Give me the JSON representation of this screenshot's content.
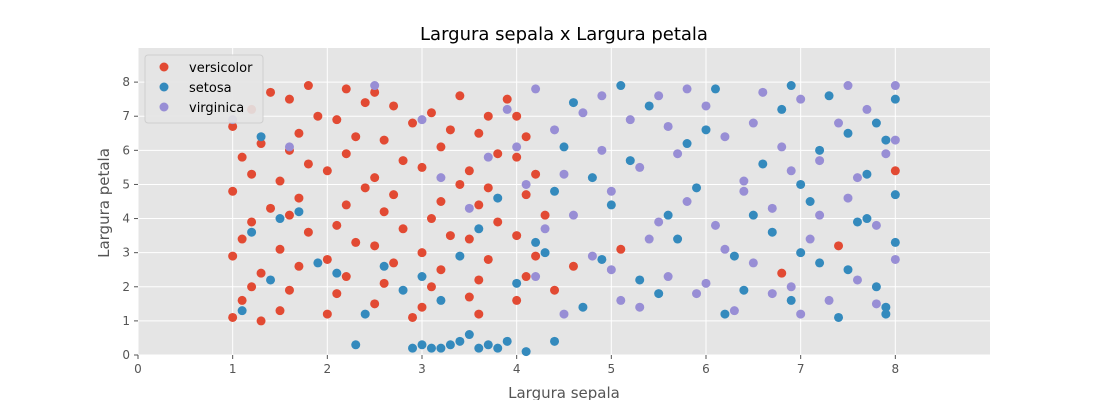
{
  "chart_data": {
    "type": "scatter",
    "title": "Largura sepala x Largura petala",
    "xlabel": "Largura sepala",
    "ylabel": "Largura petala",
    "xlim": [
      0,
      9
    ],
    "ylim": [
      0,
      9
    ],
    "xticks": [
      0,
      1,
      2,
      3,
      4,
      5,
      6,
      7,
      8
    ],
    "yticks": [
      0,
      1,
      2,
      3,
      4,
      5,
      6,
      7,
      8
    ],
    "grid": true,
    "legend_position": "top-left",
    "series": [
      {
        "name": "versicolor",
        "color": "#E24A33",
        "points": [
          [
            1.0,
            1.1
          ],
          [
            1.1,
            1.6
          ],
          [
            1.2,
            2.0
          ],
          [
            1.3,
            2.4
          ],
          [
            1.0,
            2.9
          ],
          [
            1.1,
            3.4
          ],
          [
            1.2,
            3.9
          ],
          [
            1.4,
            4.3
          ],
          [
            1.0,
            4.8
          ],
          [
            1.2,
            5.3
          ],
          [
            1.1,
            5.8
          ],
          [
            1.3,
            6.2
          ],
          [
            1.0,
            6.7
          ],
          [
            1.2,
            7.2
          ],
          [
            1.4,
            7.7
          ],
          [
            1.5,
            1.3
          ],
          [
            1.6,
            1.9
          ],
          [
            1.7,
            2.6
          ],
          [
            1.5,
            3.1
          ],
          [
            1.8,
            3.6
          ],
          [
            1.6,
            4.1
          ],
          [
            1.7,
            4.6
          ],
          [
            1.5,
            5.1
          ],
          [
            1.8,
            5.6
          ],
          [
            1.6,
            6.0
          ],
          [
            1.7,
            6.5
          ],
          [
            1.9,
            7.0
          ],
          [
            1.6,
            7.5
          ],
          [
            1.8,
            7.9
          ],
          [
            2.0,
            1.2
          ],
          [
            2.1,
            1.8
          ],
          [
            2.2,
            2.3
          ],
          [
            2.0,
            2.8
          ],
          [
            2.3,
            3.3
          ],
          [
            2.1,
            3.8
          ],
          [
            2.2,
            4.4
          ],
          [
            2.4,
            4.9
          ],
          [
            2.0,
            5.4
          ],
          [
            2.2,
            5.9
          ],
          [
            2.3,
            6.4
          ],
          [
            2.1,
            6.9
          ],
          [
            2.4,
            7.4
          ],
          [
            2.2,
            7.8
          ],
          [
            2.5,
            1.5
          ],
          [
            2.6,
            2.1
          ],
          [
            2.7,
            2.7
          ],
          [
            2.5,
            3.2
          ],
          [
            2.8,
            3.7
          ],
          [
            2.6,
            4.2
          ],
          [
            2.7,
            4.7
          ],
          [
            2.5,
            5.2
          ],
          [
            2.8,
            5.7
          ],
          [
            2.6,
            6.3
          ],
          [
            2.9,
            6.8
          ],
          [
            2.7,
            7.3
          ],
          [
            2.5,
            7.7
          ],
          [
            3.0,
            1.4
          ],
          [
            3.1,
            2.0
          ],
          [
            3.2,
            2.5
          ],
          [
            3.0,
            3.0
          ],
          [
            3.3,
            3.5
          ],
          [
            3.1,
            4.0
          ],
          [
            3.2,
            4.5
          ],
          [
            3.4,
            5.0
          ],
          [
            3.0,
            5.5
          ],
          [
            3.2,
            6.1
          ],
          [
            3.3,
            6.6
          ],
          [
            3.1,
            7.1
          ],
          [
            3.4,
            7.6
          ],
          [
            3.5,
            1.7
          ],
          [
            3.6,
            2.2
          ],
          [
            3.7,
            2.8
          ],
          [
            3.5,
            3.4
          ],
          [
            3.8,
            3.9
          ],
          [
            3.6,
            4.4
          ],
          [
            3.7,
            4.9
          ],
          [
            3.5,
            5.4
          ],
          [
            3.8,
            5.9
          ],
          [
            3.6,
            6.5
          ],
          [
            3.7,
            7.0
          ],
          [
            3.9,
            7.5
          ],
          [
            4.0,
            1.6
          ],
          [
            4.1,
            2.3
          ],
          [
            4.2,
            2.9
          ],
          [
            4.0,
            3.5
          ],
          [
            4.3,
            4.1
          ],
          [
            4.1,
            4.7
          ],
          [
            4.2,
            5.3
          ],
          [
            4.0,
            5.8
          ],
          [
            4.1,
            6.4
          ],
          [
            4.0,
            7.0
          ],
          [
            1.3,
            1.0
          ],
          [
            2.9,
            1.1
          ],
          [
            3.6,
            1.2
          ],
          [
            4.4,
            1.9
          ],
          [
            4.6,
            2.6
          ],
          [
            5.1,
            3.1
          ],
          [
            6.8,
            2.4
          ],
          [
            7.4,
            3.2
          ],
          [
            8.0,
            5.4
          ]
        ]
      },
      {
        "name": "setosa",
        "color": "#348ABD",
        "points": [
          [
            1.1,
            1.3
          ],
          [
            1.4,
            2.2
          ],
          [
            1.2,
            3.6
          ],
          [
            1.5,
            4.0
          ],
          [
            1.3,
            6.4
          ],
          [
            1.7,
            4.2
          ],
          [
            1.9,
            2.7
          ],
          [
            2.1,
            2.4
          ],
          [
            2.4,
            1.2
          ],
          [
            2.6,
            2.6
          ],
          [
            2.3,
            0.3
          ],
          [
            2.9,
            0.2
          ],
          [
            3.0,
            0.3
          ],
          [
            3.1,
            0.2
          ],
          [
            3.2,
            0.2
          ],
          [
            3.3,
            0.3
          ],
          [
            3.4,
            0.4
          ],
          [
            3.5,
            0.6
          ],
          [
            3.6,
            0.2
          ],
          [
            3.7,
            0.3
          ],
          [
            3.8,
            0.2
          ],
          [
            3.9,
            0.4
          ],
          [
            4.1,
            0.1
          ],
          [
            4.4,
            0.4
          ],
          [
            2.8,
            1.9
          ],
          [
            3.0,
            2.3
          ],
          [
            3.2,
            1.6
          ],
          [
            3.4,
            2.9
          ],
          [
            3.6,
            3.7
          ],
          [
            3.8,
            4.6
          ],
          [
            4.0,
            2.1
          ],
          [
            4.2,
            3.3
          ],
          [
            4.4,
            4.8
          ],
          [
            4.5,
            6.1
          ],
          [
            4.7,
            1.4
          ],
          [
            4.9,
            2.8
          ],
          [
            5.0,
            4.4
          ],
          [
            5.2,
            5.7
          ],
          [
            5.4,
            7.3
          ],
          [
            5.5,
            1.8
          ],
          [
            5.7,
            3.4
          ],
          [
            5.9,
            4.9
          ],
          [
            6.0,
            6.6
          ],
          [
            6.2,
            1.2
          ],
          [
            6.3,
            2.9
          ],
          [
            6.5,
            4.1
          ],
          [
            6.6,
            5.6
          ],
          [
            6.8,
            7.2
          ],
          [
            6.9,
            1.6
          ],
          [
            7.0,
            3.0
          ],
          [
            7.1,
            4.5
          ],
          [
            7.2,
            6.0
          ],
          [
            7.3,
            7.6
          ],
          [
            7.4,
            1.1
          ],
          [
            7.5,
            2.5
          ],
          [
            7.6,
            3.9
          ],
          [
            7.7,
            5.3
          ],
          [
            7.8,
            6.8
          ],
          [
            7.9,
            1.4
          ],
          [
            8.0,
            3.3
          ],
          [
            8.0,
            4.7
          ],
          [
            7.9,
            6.3
          ],
          [
            8.0,
            7.5
          ],
          [
            5.1,
            7.9
          ],
          [
            6.1,
            7.8
          ],
          [
            4.8,
            5.2
          ],
          [
            5.3,
            2.2
          ],
          [
            5.8,
            6.2
          ],
          [
            6.4,
            1.9
          ],
          [
            6.7,
            3.6
          ],
          [
            7.0,
            5.0
          ],
          [
            7.5,
            6.5
          ],
          [
            7.8,
            2.0
          ],
          [
            4.3,
            3.0
          ],
          [
            4.6,
            7.4
          ],
          [
            5.6,
            4.1
          ],
          [
            6.9,
            7.9
          ],
          [
            7.2,
            2.7
          ],
          [
            7.7,
            4.0
          ],
          [
            7.9,
            1.2
          ]
        ]
      },
      {
        "name": "virginica",
        "color": "#988ED5",
        "points": [
          [
            1.0,
            6.9
          ],
          [
            1.6,
            6.1
          ],
          [
            2.5,
            7.9
          ],
          [
            3.0,
            6.9
          ],
          [
            3.2,
            5.2
          ],
          [
            3.5,
            4.3
          ],
          [
            3.7,
            5.8
          ],
          [
            3.9,
            7.2
          ],
          [
            4.0,
            6.1
          ],
          [
            4.1,
            5.0
          ],
          [
            4.2,
            7.8
          ],
          [
            4.3,
            3.7
          ],
          [
            4.4,
            6.6
          ],
          [
            4.5,
            5.3
          ],
          [
            4.6,
            4.1
          ],
          [
            4.7,
            7.1
          ],
          [
            4.8,
            2.9
          ],
          [
            4.9,
            6.0
          ],
          [
            5.0,
            4.8
          ],
          [
            5.1,
            1.6
          ],
          [
            5.2,
            6.9
          ],
          [
            5.3,
            5.5
          ],
          [
            5.4,
            3.4
          ],
          [
            5.5,
            7.6
          ],
          [
            5.6,
            2.3
          ],
          [
            5.7,
            5.9
          ],
          [
            5.8,
            4.5
          ],
          [
            5.9,
            1.8
          ],
          [
            6.0,
            7.3
          ],
          [
            6.1,
            3.8
          ],
          [
            6.2,
            6.4
          ],
          [
            6.3,
            1.3
          ],
          [
            6.4,
            5.1
          ],
          [
            6.5,
            2.7
          ],
          [
            6.6,
            7.7
          ],
          [
            6.7,
            4.3
          ],
          [
            6.8,
            6.1
          ],
          [
            6.9,
            2.0
          ],
          [
            7.0,
            7.5
          ],
          [
            7.1,
            3.4
          ],
          [
            7.2,
            5.7
          ],
          [
            7.3,
            1.6
          ],
          [
            7.4,
            6.8
          ],
          [
            7.5,
            4.6
          ],
          [
            7.6,
            2.2
          ],
          [
            7.7,
            7.2
          ],
          [
            7.8,
            3.8
          ],
          [
            7.9,
            5.9
          ],
          [
            8.0,
            2.8
          ],
          [
            8.0,
            7.9
          ],
          [
            5.0,
            2.5
          ],
          [
            5.5,
            3.9
          ],
          [
            6.0,
            2.1
          ],
          [
            6.5,
            6.8
          ],
          [
            7.0,
            1.2
          ],
          [
            7.5,
            7.9
          ],
          [
            7.8,
            1.5
          ],
          [
            4.2,
            2.3
          ],
          [
            4.5,
            1.2
          ],
          [
            4.9,
            7.6
          ],
          [
            5.3,
            1.4
          ],
          [
            5.8,
            7.8
          ],
          [
            6.2,
            3.1
          ],
          [
            6.7,
            1.8
          ],
          [
            7.2,
            4.1
          ],
          [
            7.6,
            5.2
          ],
          [
            8.0,
            6.3
          ],
          [
            5.6,
            6.7
          ],
          [
            6.4,
            4.8
          ],
          [
            6.9,
            5.4
          ]
        ]
      }
    ]
  }
}
